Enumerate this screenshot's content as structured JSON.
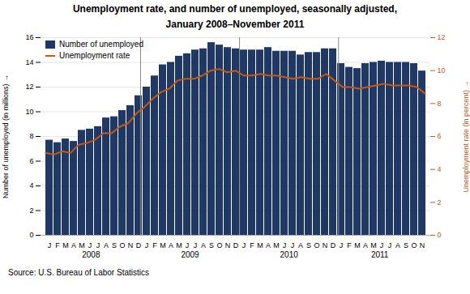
{
  "chart_data": {
    "type": "bar",
    "title": "Unemployment rate, and number of unemployed, seasonally adjusted,",
    "subtitle": "January 2008–November 2011",
    "source": "Source: U.S. Bureau of Labor Statistics",
    "categories": [
      "J",
      "F",
      "M",
      "A",
      "M",
      "J",
      "J",
      "A",
      "S",
      "O",
      "N",
      "D",
      "J",
      "F",
      "M",
      "A",
      "M",
      "J",
      "J",
      "A",
      "S",
      "O",
      "N",
      "D",
      "J",
      "F",
      "M",
      "A",
      "M",
      "J",
      "J",
      "A",
      "S",
      "O",
      "N",
      "D",
      "J",
      "F",
      "M",
      "A",
      "M",
      "J",
      "J",
      "A",
      "S",
      "O",
      "N"
    ],
    "series": [
      {
        "name": "Number of unemployed",
        "type": "bar",
        "color": "#1F3864",
        "values": [
          7.7,
          7.5,
          7.8,
          7.6,
          8.5,
          8.6,
          8.8,
          9.5,
          9.6,
          10.1,
          10.5,
          11.3,
          12.0,
          12.9,
          13.8,
          14.0,
          14.5,
          14.7,
          15.0,
          15.1,
          15.6,
          15.4,
          15.2,
          15.1,
          15.0,
          15.0,
          15.0,
          15.2,
          14.9,
          14.9,
          14.9,
          14.6,
          14.8,
          14.8,
          15.1,
          15.1,
          13.9,
          13.6,
          13.5,
          13.9,
          14.0,
          14.1,
          14.0,
          14.0,
          14.0,
          13.9,
          13.3
        ]
      },
      {
        "name": "Unemployment rate",
        "type": "line",
        "color": "#C55A11",
        "axis": "y2",
        "values": [
          5.0,
          4.9,
          5.1,
          5.0,
          5.5,
          5.6,
          5.8,
          6.2,
          6.2,
          6.6,
          6.8,
          7.4,
          7.8,
          8.3,
          8.7,
          8.9,
          9.4,
          9.5,
          9.5,
          9.7,
          10.0,
          10.1,
          9.9,
          10.0,
          9.7,
          9.7,
          9.8,
          9.7,
          9.7,
          9.6,
          9.5,
          9.6,
          9.5,
          9.5,
          9.8,
          9.4,
          9.0,
          9.0,
          8.9,
          9.0,
          9.1,
          9.2,
          9.1,
          9.1,
          9.1,
          9.0,
          8.6
        ]
      }
    ],
    "ylabel": "Number of unemployed (in millions)",
    "y2label": "Unemployment rate (in percent)",
    "ylim": [
      0,
      16
    ],
    "yticks": [
      0,
      2,
      4,
      6,
      8,
      10,
      12,
      14,
      16
    ],
    "y2lim": [
      0,
      12
    ],
    "y2ticks": [
      0,
      2,
      4,
      6,
      8,
      10,
      12
    ],
    "grid": true,
    "legend": "upper left",
    "annotations": [
      {
        "text": "2008",
        "x": 5.5
      },
      {
        "text": "2009",
        "x": 17.5
      },
      {
        "text": "2010",
        "x": 29.5
      },
      {
        "text": "2011",
        "x": 40.5
      }
    ],
    "dividers": [
      12,
      24,
      36
    ]
  }
}
